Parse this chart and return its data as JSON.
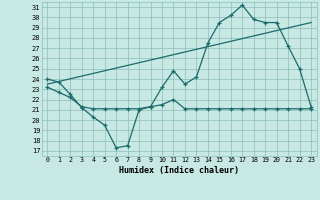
{
  "xlabel": "Humidex (Indice chaleur)",
  "bg_color": "#c8e8e4",
  "grid_color": "#8bbcba",
  "line_color": "#1a6b6b",
  "xlim": [
    -0.5,
    23.5
  ],
  "ylim": [
    16.5,
    31.5
  ],
  "xticks": [
    0,
    1,
    2,
    3,
    4,
    5,
    6,
    7,
    8,
    9,
    10,
    11,
    12,
    13,
    14,
    15,
    16,
    17,
    18,
    19,
    20,
    21,
    22,
    23
  ],
  "yticks": [
    17,
    18,
    19,
    20,
    21,
    22,
    23,
    24,
    25,
    26,
    27,
    28,
    29,
    30,
    31
  ],
  "curve1_x": [
    0,
    1,
    2,
    3,
    4,
    5,
    6,
    7,
    8,
    9,
    10,
    11,
    12,
    13,
    14,
    15,
    16,
    17,
    18,
    19,
    20,
    21,
    22,
    23
  ],
  "curve1_y": [
    24.0,
    23.7,
    22.5,
    21.2,
    20.3,
    19.5,
    17.3,
    17.5,
    21.0,
    21.3,
    23.2,
    24.8,
    23.5,
    24.2,
    27.5,
    29.5,
    30.2,
    31.2,
    29.8,
    29.5,
    29.5,
    27.2,
    25.0,
    21.3
  ],
  "curve2_x": [
    0,
    1,
    2,
    3,
    4,
    5,
    6,
    7,
    8,
    9,
    10,
    11,
    12,
    13,
    14,
    15,
    16,
    17,
    18,
    19,
    20,
    21,
    22,
    23
  ],
  "curve2_y": [
    23.2,
    22.7,
    22.2,
    21.3,
    21.1,
    21.1,
    21.1,
    21.1,
    21.1,
    21.3,
    21.5,
    22.0,
    21.1,
    21.1,
    21.1,
    21.1,
    21.1,
    21.1,
    21.1,
    21.1,
    21.1,
    21.1,
    21.1,
    21.1
  ],
  "trend_x": [
    0,
    23
  ],
  "trend_y": [
    23.5,
    29.5
  ]
}
